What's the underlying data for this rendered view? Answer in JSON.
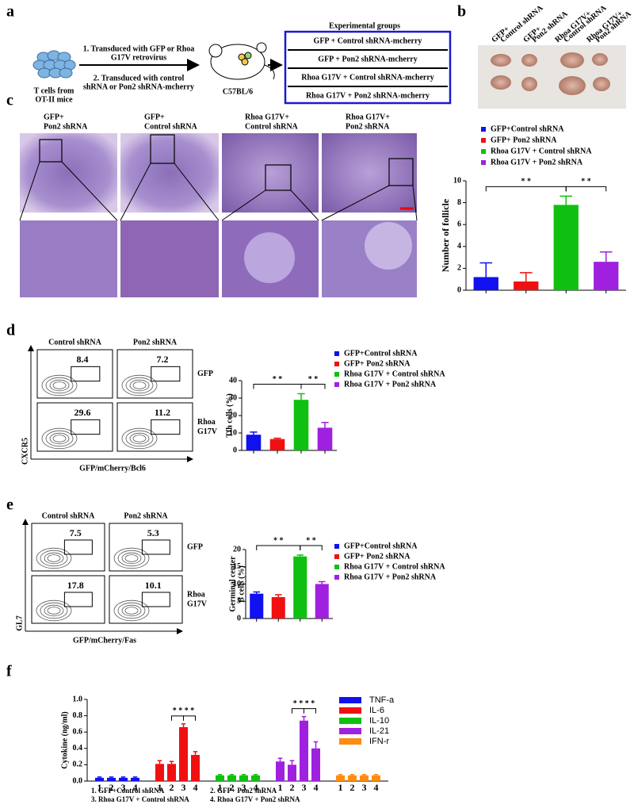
{
  "panel_labels": [
    "a",
    "b",
    "c",
    "d",
    "e",
    "f"
  ],
  "panel_a": {
    "source": [
      "T cells from",
      "OT-II mice"
    ],
    "step1": [
      "1. Transduced with GFP or Rhoa",
      "G17V retrovirus"
    ],
    "step2": [
      "2. Transduced with  control",
      "shRNA or Pon2 shRNA-mcherry"
    ],
    "mouse": "C57BL/6",
    "groups_title": "Experimental groups",
    "groups": [
      "GFP + Control  shRNA-mcherry",
      "GFP + Pon2 shRNA-mcherry",
      "Rhoa G17V + Control shRNA-mcherry",
      "Rhoa G17V + Pon2 shRNA-mcherry"
    ]
  },
  "panel_b_labels": [
    [
      "GFP+",
      "Control shRNA"
    ],
    [
      "GFP+",
      "Pon2 shRNA"
    ],
    [
      "Rhoa G17V+",
      "Control shRNA"
    ],
    [
      "Rhoa G17V+",
      "Pon2 shRNA"
    ]
  ],
  "panel_c_labels": [
    [
      "GFP+",
      "Pon2 shRNA"
    ],
    [
      "GFP+",
      "Control shRNA"
    ],
    [
      "Rhoa G17V+",
      "Control shRNA"
    ],
    [
      "Rhoa G17V+",
      "Pon2 shRNA"
    ]
  ],
  "panel_d_flow": {
    "columns": [
      "Control shRNA",
      "Pon2 shRNA"
    ],
    "rows": [
      [
        "GFP"
      ],
      [
        "Rhoa",
        "G17V"
      ]
    ],
    "values": [
      "8.4",
      "7.2",
      "29.6",
      "11.2"
    ],
    "x_label": "GFP/mCherry/Bcl6",
    "y_label": "CXCR5"
  },
  "panel_e_flow": {
    "columns": [
      "Control shRNA",
      "Pon2 shRNA"
    ],
    "rows": [
      [
        "GFP"
      ],
      [
        "Rhoa",
        "G17V"
      ]
    ],
    "values": [
      "7.5",
      "5.3",
      "17.8",
      "10.1"
    ],
    "x_label": "GFP/mCherry/Fas",
    "y_label": "GL7"
  },
  "chart_data": [
    {
      "type": "bar",
      "categories": [
        "GFP+Control  shRNA",
        "GFP+ Pon2 shRNA",
        "Rhoa G17V + Control shRNA",
        "Rhoa G17V + Pon2 shRNA"
      ],
      "values": [
        1.2,
        0.8,
        7.8,
        2.6
      ],
      "errors": [
        1.3,
        0.8,
        0.8,
        0.9
      ],
      "colors": [
        "#1010f0",
        "#f01010",
        "#10c010",
        "#a020e0"
      ],
      "ylim": [
        0,
        10
      ],
      "yticks": [
        0,
        2,
        4,
        6,
        8,
        10
      ],
      "y_label": [
        "Number of  follicle"
      ],
      "annotations": [
        "* *",
        "* *"
      ]
    },
    {
      "type": "bar",
      "categories": [
        "GFP+Control  shRNA",
        "GFP+ Pon2 shRNA",
        "Rhoa G17V + Control shRNA",
        "Rhoa G17V + Pon2 shRNA"
      ],
      "values": [
        9,
        6.5,
        29,
        13
      ],
      "errors": [
        1.5,
        0.5,
        3.5,
        3
      ],
      "colors": [
        "#1010f0",
        "#f01010",
        "#10c010",
        "#a020e0"
      ],
      "ylim": [
        0,
        40
      ],
      "yticks": [
        0,
        10,
        20,
        30,
        40
      ],
      "y_label": [
        "Tfh cells (%)"
      ],
      "annotations": [
        "* *",
        "* *"
      ]
    },
    {
      "type": "bar",
      "categories": [
        "GFP+Control  shRNA",
        "GFP+ Pon2 shRNA",
        "Rhoa G17V + Control shRNA",
        "Rhoa G17V + Pon2 shRNA"
      ],
      "values": [
        7.2,
        6.2,
        18,
        10
      ],
      "errors": [
        0.5,
        0.7,
        0.4,
        0.7
      ],
      "colors": [
        "#1010f0",
        "#f01010",
        "#10c010",
        "#a020e0"
      ],
      "ylim": [
        0,
        20
      ],
      "yticks": [
        0,
        5,
        10,
        15,
        20
      ],
      "y_label": [
        "Germinal center",
        "B cells (%)"
      ],
      "annotations": [
        "* *",
        "* *"
      ]
    },
    {
      "type": "grouped_bar",
      "categories": [
        "1",
        "2",
        "3",
        "4"
      ],
      "series": [
        {
          "name": "TNF-a",
          "color": "#1010f0",
          "values": [
            0.04,
            0.04,
            0.04,
            0.04
          ],
          "errors": [
            0.01,
            0.01,
            0.01,
            0.01
          ]
        },
        {
          "name": "IL-6",
          "color": "#f01010",
          "values": [
            0.21,
            0.21,
            0.66,
            0.32
          ],
          "errors": [
            0.04,
            0.03,
            0.04,
            0.04
          ]
        },
        {
          "name": "IL-10",
          "color": "#10c010",
          "values": [
            0.07,
            0.07,
            0.07,
            0.07
          ],
          "errors": [
            0.01,
            0.01,
            0.01,
            0.01
          ]
        },
        {
          "name": "IL-21",
          "color": "#a020e0",
          "values": [
            0.24,
            0.2,
            0.74,
            0.4
          ],
          "errors": [
            0.04,
            0.05,
            0.05,
            0.08
          ]
        },
        {
          "name": "IFN-r",
          "color": "#ff8c10",
          "values": [
            0.07,
            0.07,
            0.07,
            0.07
          ],
          "errors": [
            0.01,
            0.01,
            0.01,
            0.01
          ]
        }
      ],
      "ylim": [
        0,
        1.0
      ],
      "yticks": [
        {
          "value": 0,
          "label": "0.0"
        },
        {
          "value": 0.2,
          "label": "0.2"
        },
        {
          "value": 0.4,
          "label": "0.4"
        },
        {
          "value": 0.6,
          "label": "0.6"
        },
        {
          "value": 0.8,
          "label": "0.8"
        },
        {
          "value": 1.0,
          "label": "1.0"
        }
      ],
      "y_label": [
        "Cytokine (ng/ml)"
      ],
      "annotations": [
        "* *",
        "* *",
        "* *",
        "* *"
      ],
      "footnotes": [
        "1. GFP+Control  shRNA",
        "2. GFP+ Pon2 shRNA",
        "3. Rhoa G17V + Control shRNA",
        "4. Rhoa G17V + Pon2 shRNA"
      ]
    }
  ]
}
